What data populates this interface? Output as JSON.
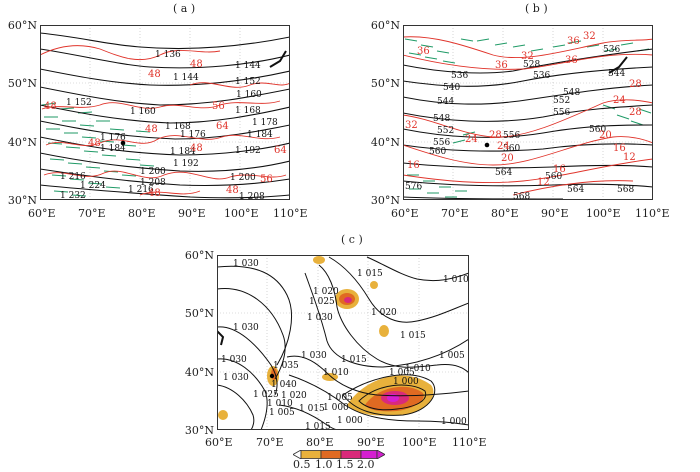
{
  "panels": {
    "a": {
      "label": "( a )",
      "lat_labels": [
        "60°N",
        "50°N",
        "40°N",
        "30°N"
      ],
      "lon_labels": [
        "60°E",
        "70°E",
        "80°E",
        "90°E",
        "100°E",
        "110°E"
      ],
      "black_labels": [
        "1 136",
        "1 144",
        "1 144",
        "1 152",
        "1 152",
        "1 160",
        "1 160",
        "1 168",
        "1 168",
        "1 176",
        "1 178",
        "1 176",
        "1 184",
        "1 184",
        "1 184",
        "1 192",
        "1 192",
        "1 200",
        "1 200",
        "1 208",
        "1 208",
        "1 216",
        "1 224",
        "1 216",
        "1 232"
      ],
      "red_labels": [
        "48",
        "48",
        "48",
        "56",
        "48",
        "48",
        "64",
        "64",
        "48",
        "56",
        "48",
        "48"
      ]
    },
    "b": {
      "label": "( b )",
      "lat_labels": [
        "60°N",
        "50°N",
        "40°N",
        "30°N"
      ],
      "lon_labels": [
        "60°E",
        "70°E",
        "80°E",
        "90°E",
        "100°E",
        "110°E"
      ],
      "black_labels": [
        "536",
        "528",
        "536",
        "536",
        "540",
        "544",
        "544",
        "548",
        "552",
        "556",
        "552",
        "548",
        "556",
        "556",
        "560",
        "560",
        "560",
        "564",
        "560",
        "564",
        "568",
        "568",
        "576"
      ],
      "red_labels": [
        "36",
        "32",
        "36",
        "36",
        "32",
        "36",
        "28",
        "24",
        "28",
        "28",
        "32",
        "24",
        "20",
        "20",
        "24",
        "16",
        "16",
        "12",
        "16",
        "12"
      ]
    },
    "c": {
      "label": "( c )",
      "lat_labels": [
        "60°N",
        "50°N",
        "40°N",
        "30°N"
      ],
      "lon_labels": [
        "60°E",
        "70°E",
        "80°E",
        "90°E",
        "100°E",
        "110°E"
      ],
      "black_labels": [
        "1 030",
        "1 015",
        "1 010",
        "1 020",
        "1 025",
        "1 030",
        "1 030",
        "1 020",
        "1 015",
        "1 005",
        "1 030",
        "1 030",
        "1 030",
        "1 035",
        "1 040",
        "1 015",
        "1 010",
        "1 005",
        "1 010",
        "1 000",
        "1 025",
        "1 020",
        "1 005",
        "1 005",
        "1 015",
        "1 010",
        "1 000",
        "1 000",
        "1 000",
        "1 015"
      ],
      "colorbar": [
        "0.5",
        "1.0",
        "1.5",
        "2.0"
      ]
    }
  },
  "colors": {
    "contour_black": "#111111",
    "contour_red": "#e0342b",
    "wind_green": "#1f9a66",
    "shade_light": "#e8b13c",
    "shade_mid": "#e06a22",
    "shade_dark": "#d92a7a",
    "shade_max": "#d41fd1"
  }
}
